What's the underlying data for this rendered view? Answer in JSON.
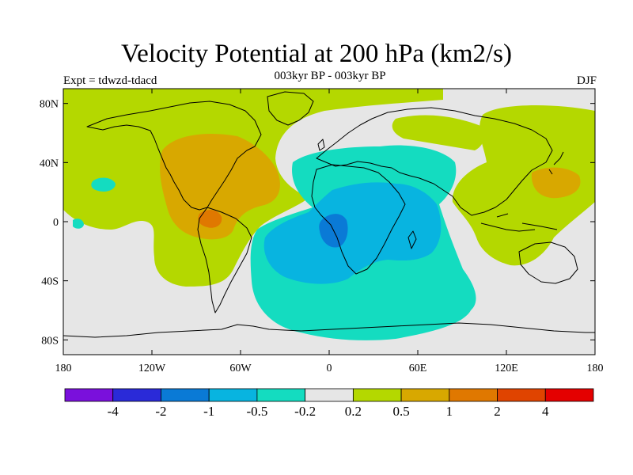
{
  "title": "Velocity Potential at 200 hPa (km2/s)",
  "subtitle": "003kyr BP - 003kyr BP",
  "left_label": "Expt = tdwzd-tdacd",
  "right_label": "DJF",
  "map": {
    "projection": "cylindrical equidistant",
    "lon_range": [
      -180,
      180
    ],
    "lat_range": [
      -90,
      90
    ],
    "lon_ticks": [
      {
        "value": -180,
        "label": "180"
      },
      {
        "value": -120,
        "label": "120W"
      },
      {
        "value": -60,
        "label": "60W"
      },
      {
        "value": 0,
        "label": "0"
      },
      {
        "value": 60,
        "label": "60E"
      },
      {
        "value": 120,
        "label": "120E"
      },
      {
        "value": 180,
        "label": "180"
      }
    ],
    "lat_ticks": [
      {
        "value": 80,
        "label": "80N"
      },
      {
        "value": 40,
        "label": "40N"
      },
      {
        "value": 0,
        "label": "0"
      },
      {
        "value": -40,
        "label": "40S"
      },
      {
        "value": -80,
        "label": "80S"
      }
    ],
    "background_color": "#e6e6e6",
    "coastline_color": "#000000"
  },
  "colorbar": {
    "boundaries": [
      "-4",
      "-2",
      "-1",
      "-0.5",
      "-0.2",
      "0.2",
      "0.5",
      "1",
      "2",
      "4"
    ],
    "colors": [
      "#7a10dc",
      "#2a2ad8",
      "#0a7ad6",
      "#08b4e0",
      "#14dcc0",
      "#e6e6e6",
      "#b4d800",
      "#d8a800",
      "#e07800",
      "#e04400",
      "#e40000"
    ]
  }
}
